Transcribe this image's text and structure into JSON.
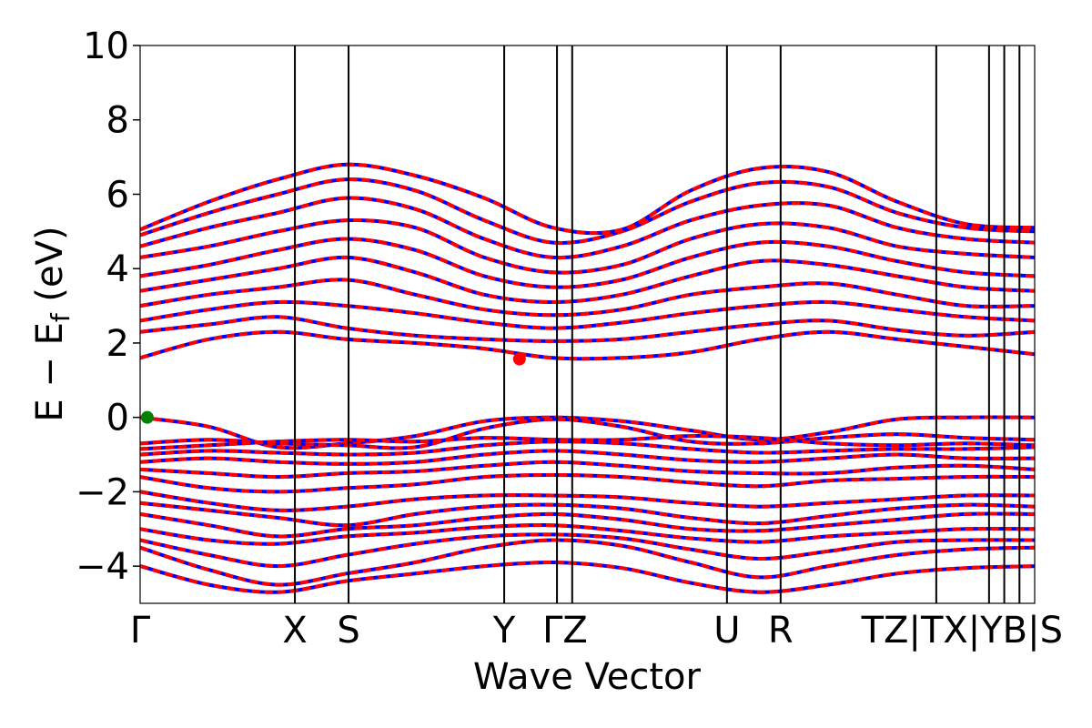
{
  "chart_data": {
    "type": "line",
    "xlabel": "Wave Vector",
    "ylabel_main": "E − E",
    "ylabel_sub": "f",
    "ylabel_unit": " (eV)",
    "ylim": [
      -5,
      10
    ],
    "yticks": [
      -4,
      -2,
      0,
      2,
      4,
      6,
      8,
      10
    ],
    "ytick_labels": [
      "−4",
      "−2",
      "0",
      "2",
      "4",
      "6",
      "8",
      "10"
    ],
    "xlim": [
      0,
      10
    ],
    "kpoints": [
      {
        "label": "Γ",
        "x": 0.0
      },
      {
        "label": "X",
        "x": 1.73
      },
      {
        "label": "S",
        "x": 2.33
      },
      {
        "label": "Y",
        "x": 4.07
      },
      {
        "label": "Γ",
        "x": 4.66
      },
      {
        "label": "Z",
        "x": 4.83
      },
      {
        "label": "U",
        "x": 6.56
      },
      {
        "label": "R",
        "x": 7.16
      },
      {
        "label": "T",
        "x": 8.9
      },
      {
        "label": "Z",
        "x": 9.49
      },
      {
        "label": "T",
        "x": 9.49
      },
      {
        "label": "X",
        "x": 9.66
      },
      {
        "label": "Y",
        "x": 9.83
      },
      {
        "label": "B",
        "x": 10.0
      },
      {
        "label": "S",
        "x": 10.0
      }
    ],
    "tick_labels_drawn": [
      {
        "text": "Γ",
        "x": 0.0
      },
      {
        "text": "X",
        "x": 1.73
      },
      {
        "text": "S",
        "x": 2.33
      },
      {
        "text": "Y",
        "x": 4.07
      },
      {
        "text": "ΓZ",
        "x": 4.75
      },
      {
        "text": "U",
        "x": 6.56
      },
      {
        "text": "R",
        "x": 7.16
      },
      {
        "text": "TZ|TX|YB|S",
        "x": 9.5
      }
    ],
    "vbm": {
      "x": 0.08,
      "y": 0.0,
      "color": "#007f00"
    },
    "cbm": {
      "x": 4.24,
      "y": 1.57,
      "color": "#ff0000"
    },
    "colors": {
      "spin_up": "#ff0000",
      "spin_down": "#0000ff",
      "vbm": "#007f00",
      "cbm": "#ff0000"
    },
    "valence_bands": [
      [
        0.0,
        -0.25,
        -0.8,
        -0.7,
        -0.5,
        -0.1,
        0.0,
        -0.1,
        -0.35,
        -0.6,
        -0.4,
        -0.05,
        0.0,
        0.0
      ],
      [
        -0.7,
        -0.6,
        -0.7,
        -0.75,
        -0.8,
        -0.3,
        -0.05,
        -0.25,
        -0.65,
        -0.7,
        -0.55,
        -0.45,
        -0.55,
        -0.6
      ],
      [
        -0.85,
        -0.75,
        -0.65,
        -0.6,
        -0.65,
        -0.55,
        -0.6,
        -0.6,
        -0.5,
        -0.55,
        -0.7,
        -0.75,
        -0.7,
        -0.75
      ],
      [
        -1.0,
        -0.9,
        -0.95,
        -1.0,
        -0.95,
        -0.75,
        -0.65,
        -0.7,
        -0.85,
        -0.95,
        -0.9,
        -0.85,
        -0.85,
        -0.8
      ],
      [
        -1.2,
        -1.1,
        -1.2,
        -1.25,
        -1.2,
        -1.0,
        -0.9,
        -1.0,
        -1.15,
        -1.2,
        -1.1,
        -1.0,
        -1.1,
        -1.1
      ],
      [
        -1.4,
        -1.5,
        -1.6,
        -1.5,
        -1.45,
        -1.3,
        -1.2,
        -1.3,
        -1.45,
        -1.5,
        -1.5,
        -1.35,
        -1.3,
        -1.4
      ],
      [
        -1.6,
        -1.9,
        -2.0,
        -1.9,
        -1.8,
        -1.6,
        -1.55,
        -1.6,
        -1.75,
        -1.85,
        -1.7,
        -1.65,
        -1.6,
        -1.6
      ],
      [
        -2.0,
        -2.3,
        -2.5,
        -2.4,
        -2.2,
        -2.1,
        -2.1,
        -2.15,
        -2.3,
        -2.4,
        -2.3,
        -2.2,
        -2.1,
        -2.1
      ],
      [
        -2.3,
        -2.5,
        -2.7,
        -2.9,
        -2.6,
        -2.4,
        -2.35,
        -2.45,
        -2.7,
        -2.85,
        -2.65,
        -2.45,
        -2.35,
        -2.4
      ],
      [
        -2.6,
        -2.9,
        -3.2,
        -3.0,
        -2.9,
        -2.7,
        -2.6,
        -2.75,
        -3.0,
        -3.05,
        -2.9,
        -2.75,
        -2.6,
        -2.6
      ],
      [
        -3.0,
        -3.3,
        -3.4,
        -3.2,
        -3.1,
        -2.95,
        -2.9,
        -3.05,
        -3.25,
        -3.35,
        -3.2,
        -3.1,
        -3.0,
        -3.0
      ],
      [
        -3.3,
        -3.7,
        -4.0,
        -3.7,
        -3.4,
        -3.2,
        -3.15,
        -3.25,
        -3.55,
        -3.8,
        -3.6,
        -3.35,
        -3.3,
        -3.3
      ],
      [
        -3.5,
        -4.1,
        -4.5,
        -4.2,
        -3.9,
        -3.5,
        -3.3,
        -3.45,
        -3.9,
        -4.3,
        -4.0,
        -3.7,
        -3.55,
        -3.5
      ],
      [
        -4.0,
        -4.5,
        -4.7,
        -4.4,
        -4.2,
        -4.0,
        -3.9,
        -4.05,
        -4.45,
        -4.7,
        -4.5,
        -4.2,
        -4.05,
        -4.0
      ]
    ],
    "conduction_bands": [
      [
        1.6,
        2.1,
        2.3,
        2.1,
        2.0,
        1.85,
        1.6,
        1.6,
        1.75,
        2.1,
        2.3,
        2.1,
        1.9,
        1.7
      ],
      [
        2.3,
        2.5,
        2.7,
        2.4,
        2.2,
        2.1,
        2.05,
        2.1,
        2.3,
        2.5,
        2.6,
        2.35,
        2.2,
        2.3
      ],
      [
        2.6,
        2.9,
        3.1,
        3.0,
        2.8,
        2.55,
        2.4,
        2.55,
        2.8,
        3.0,
        3.1,
        2.9,
        2.7,
        2.6
      ],
      [
        3.0,
        3.3,
        3.5,
        3.7,
        3.3,
        2.9,
        2.75,
        2.9,
        3.3,
        3.5,
        3.6,
        3.3,
        3.0,
        3.0
      ],
      [
        3.4,
        3.7,
        4.0,
        4.3,
        3.9,
        3.3,
        3.1,
        3.3,
        3.8,
        4.2,
        4.1,
        3.8,
        3.5,
        3.4
      ],
      [
        3.8,
        4.1,
        4.5,
        4.8,
        4.5,
        3.8,
        3.5,
        3.7,
        4.3,
        4.7,
        4.6,
        4.2,
        3.9,
        3.8
      ],
      [
        4.3,
        4.6,
        5.0,
        5.3,
        5.1,
        4.3,
        3.9,
        4.1,
        4.8,
        5.2,
        5.1,
        4.6,
        4.4,
        4.3
      ],
      [
        4.6,
        5.1,
        5.5,
        5.9,
        5.6,
        4.8,
        4.3,
        4.6,
        5.3,
        5.7,
        5.7,
        5.1,
        4.8,
        4.7
      ],
      [
        4.9,
        5.5,
        6.0,
        6.4,
        6.1,
        5.3,
        4.7,
        5.0,
        5.8,
        6.3,
        6.2,
        5.5,
        5.1,
        5.0
      ],
      [
        5.05,
        5.8,
        6.4,
        6.8,
        6.5,
        5.9,
        5.1,
        5.05,
        6.1,
        6.7,
        6.6,
        5.8,
        5.2,
        5.1
      ]
    ]
  }
}
